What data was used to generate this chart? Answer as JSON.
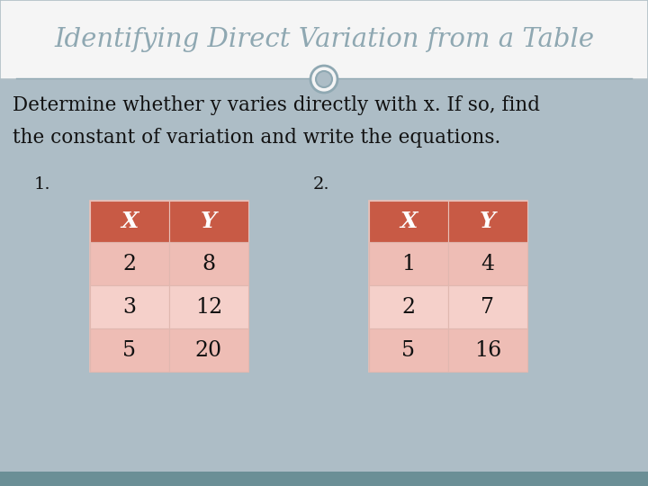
{
  "title": "Identifying Direct Variation from a Table",
  "subtitle_line1": "Determine whether y varies directly with x. If so, find",
  "subtitle_line2": "the constant of variation and write the equations.",
  "label1": "1.",
  "label2": "2.",
  "table1_headers": [
    "X",
    "Y"
  ],
  "table1_data": [
    [
      "2",
      "8"
    ],
    [
      "3",
      "12"
    ],
    [
      "5",
      "20"
    ]
  ],
  "table2_headers": [
    "X",
    "Y"
  ],
  "table2_data": [
    [
      "1",
      "4"
    ],
    [
      "2",
      "7"
    ],
    [
      "5",
      "16"
    ]
  ],
  "bg_color": "#adbdc6",
  "title_bg": "#f5f5f5",
  "title_border": "#b0bec5",
  "header_color": "#c85a45",
  "row_color": "#eebdb5",
  "row_color_alt": "#f5d0ca",
  "title_color": "#8fa8b2",
  "subtitle_color": "#111111",
  "number_color": "#111111",
  "header_text_color": "#ffffff",
  "bottom_bar_color": "#6b8f96",
  "circle_fill": "#f0f0f0",
  "circle_edge": "#8fa8b2",
  "line_color": "#8fa8b2"
}
